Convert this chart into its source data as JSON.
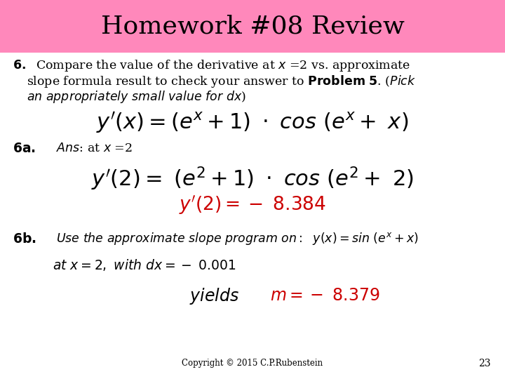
{
  "title": "Homework #08 Review",
  "title_bg_color": "#FF88BB",
  "bg_color": "#FFFFFF",
  "title_fontsize": 26,
  "copyright": "Copyright © 2015 C.P.Rubenstein",
  "page_num": "23"
}
